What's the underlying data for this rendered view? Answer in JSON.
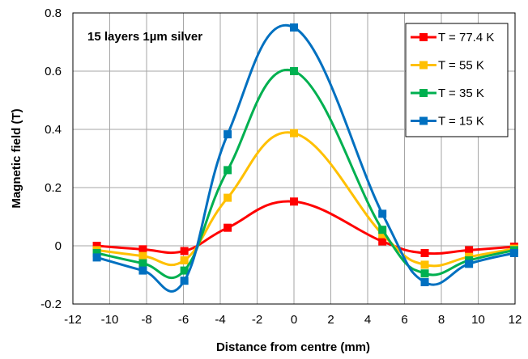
{
  "chart_data": {
    "type": "line",
    "title": "",
    "annotation": "15 layers 1µm silver",
    "xlabel": "Distance from centre (mm)",
    "ylabel": "Magnetic field (T)",
    "xlim": [
      -12,
      12
    ],
    "ylim": [
      -0.2,
      0.8
    ],
    "xticks": [
      -12,
      -10,
      -8,
      -6,
      -4,
      -2,
      0,
      2,
      4,
      6,
      8,
      10,
      12
    ],
    "yticks": [
      -0.2,
      0,
      0.2,
      0.4,
      0.6,
      0.8
    ],
    "xtick_labels": [
      "-12",
      "-10",
      "-8",
      "-6",
      "-4",
      "-2",
      "0",
      "2",
      "4",
      "6",
      "8",
      "10",
      "12"
    ],
    "ytick_labels": [
      "-0.2",
      "0",
      "0.2",
      "0.4",
      "0.6",
      "0.8"
    ],
    "grid": true,
    "legend_position": "top-right",
    "x": [
      -10.7,
      -8.2,
      -5.95,
      -3.6,
      0,
      4.8,
      7.1,
      9.5,
      11.95
    ],
    "series": [
      {
        "name": "T = 77.4 K",
        "color": "#ff0000",
        "values": [
          0.0,
          -0.012,
          -0.018,
          0.062,
          0.152,
          0.015,
          -0.025,
          -0.015,
          -0.003
        ]
      },
      {
        "name": "T = 55 K",
        "color": "#ffc000",
        "values": [
          -0.015,
          -0.035,
          -0.05,
          0.165,
          0.387,
          0.04,
          -0.065,
          -0.038,
          -0.01
        ]
      },
      {
        "name": "T = 35 K",
        "color": "#00b050",
        "values": [
          -0.025,
          -0.06,
          -0.085,
          0.26,
          0.6,
          0.055,
          -0.095,
          -0.05,
          -0.015
        ]
      },
      {
        "name": "T = 15 K",
        "color": "#0070c0",
        "values": [
          -0.04,
          -0.085,
          -0.12,
          0.383,
          0.75,
          0.11,
          -0.125,
          -0.062,
          -0.025
        ]
      }
    ]
  }
}
